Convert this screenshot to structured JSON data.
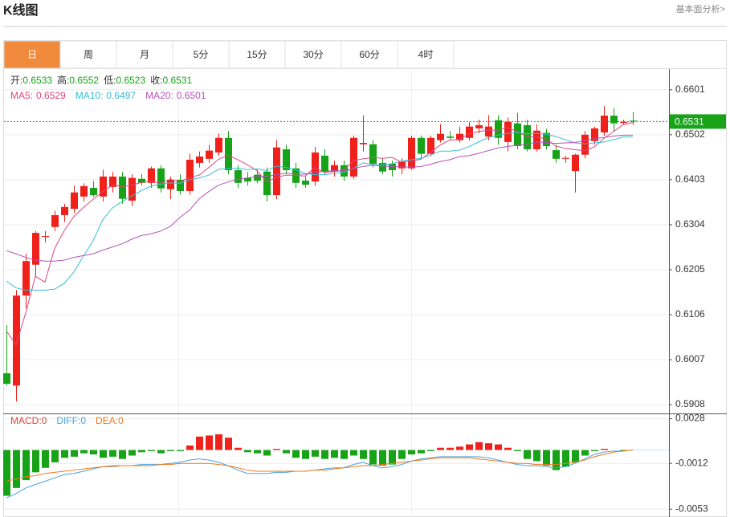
{
  "header": {
    "title": "K线图",
    "link": "基本面分析>"
  },
  "tabs": {
    "items": [
      "日",
      "周",
      "月",
      "5分",
      "15分",
      "30分",
      "60分",
      "4时"
    ],
    "active": 0
  },
  "chart_data": [
    {
      "type": "candlestick",
      "up_color": "#f0201a",
      "down_color": "#17a317",
      "info_labels": [
        "开:",
        "高:",
        "低:",
        "收:"
      ],
      "ohlc": [
        [
          0.5977,
          0.6083,
          0.595,
          0.5954
        ],
        [
          0.595,
          0.616,
          0.5915,
          0.6148
        ],
        [
          0.6148,
          0.624,
          0.612,
          0.6224
        ],
        [
          0.6216,
          0.629,
          0.619,
          0.6286
        ],
        [
          0.6277,
          0.629,
          0.6265,
          0.6279
        ],
        [
          0.6299,
          0.6335,
          0.629,
          0.6325
        ],
        [
          0.6325,
          0.635,
          0.631,
          0.6343
        ],
        [
          0.6339,
          0.639,
          0.633,
          0.6375
        ],
        [
          0.6366,
          0.6395,
          0.6355,
          0.6389
        ],
        [
          0.6385,
          0.64,
          0.6365,
          0.6369
        ],
        [
          0.6366,
          0.6425,
          0.6355,
          0.641
        ],
        [
          0.6387,
          0.642,
          0.6375,
          0.641
        ],
        [
          0.641,
          0.642,
          0.635,
          0.6361
        ],
        [
          0.6357,
          0.6415,
          0.6345,
          0.6407
        ],
        [
          0.6405,
          0.6415,
          0.639,
          0.6396
        ],
        [
          0.6396,
          0.6432,
          0.6385,
          0.6428
        ],
        [
          0.6428,
          0.6435,
          0.6375,
          0.6384
        ],
        [
          0.6382,
          0.641,
          0.636,
          0.6403
        ],
        [
          0.6403,
          0.6415,
          0.637,
          0.6378
        ],
        [
          0.6378,
          0.646,
          0.637,
          0.6447
        ],
        [
          0.644,
          0.6465,
          0.643,
          0.6454
        ],
        [
          0.6449,
          0.648,
          0.644,
          0.6467
        ],
        [
          0.6463,
          0.6505,
          0.6455,
          0.6495
        ],
        [
          0.6495,
          0.651,
          0.6415,
          0.6424
        ],
        [
          0.6424,
          0.6435,
          0.6385,
          0.6396
        ],
        [
          0.6407,
          0.642,
          0.639,
          0.6399
        ],
        [
          0.6414,
          0.6425,
          0.6395,
          0.6401
        ],
        [
          0.6421,
          0.643,
          0.6355,
          0.6369
        ],
        [
          0.6369,
          0.649,
          0.636,
          0.6474
        ],
        [
          0.647,
          0.648,
          0.6415,
          0.6424
        ],
        [
          0.6428,
          0.644,
          0.6385,
          0.6396
        ],
        [
          0.6401,
          0.641,
          0.6385,
          0.6392
        ],
        [
          0.6399,
          0.6475,
          0.639,
          0.6463
        ],
        [
          0.6456,
          0.647,
          0.6415,
          0.6421
        ],
        [
          0.6421,
          0.6445,
          0.641,
          0.6435
        ],
        [
          0.6435,
          0.6445,
          0.64,
          0.641
        ],
        [
          0.641,
          0.65,
          0.6405,
          0.6495
        ],
        [
          0.6481,
          0.6545,
          0.6465,
          0.6484
        ],
        [
          0.6481,
          0.649,
          0.643,
          0.6438
        ],
        [
          0.644,
          0.645,
          0.6415,
          0.6421
        ],
        [
          0.6438,
          0.6445,
          0.641,
          0.6424
        ],
        [
          0.6428,
          0.645,
          0.6415,
          0.6442
        ],
        [
          0.6428,
          0.65,
          0.6425,
          0.6495
        ],
        [
          0.6495,
          0.65,
          0.645,
          0.646
        ],
        [
          0.646,
          0.65,
          0.6455,
          0.6495
        ],
        [
          0.649,
          0.6525,
          0.6485,
          0.6504
        ],
        [
          0.6498,
          0.651,
          0.649,
          0.6495
        ],
        [
          0.649,
          0.652,
          0.6485,
          0.6504
        ],
        [
          0.6495,
          0.653,
          0.649,
          0.652
        ],
        [
          0.6516,
          0.6535,
          0.6505,
          0.6523
        ],
        [
          0.6498,
          0.6545,
          0.649,
          0.652
        ],
        [
          0.6534,
          0.6545,
          0.648,
          0.6495
        ],
        [
          0.6486,
          0.654,
          0.6465,
          0.653
        ],
        [
          0.6527,
          0.655,
          0.647,
          0.6477
        ],
        [
          0.6523,
          0.6535,
          0.6465,
          0.647
        ],
        [
          0.647,
          0.6525,
          0.6465,
          0.6511
        ],
        [
          0.6506,
          0.6515,
          0.647,
          0.6477
        ],
        [
          0.6468,
          0.648,
          0.644,
          0.6449
        ],
        [
          0.6449,
          0.6455,
          0.644,
          0.6451
        ],
        [
          0.6422,
          0.646,
          0.6375,
          0.6458
        ],
        [
          0.6458,
          0.651,
          0.645,
          0.6502
        ],
        [
          0.6488,
          0.652,
          0.648,
          0.6516
        ],
        [
          0.6507,
          0.6565,
          0.65,
          0.6544
        ],
        [
          0.6544,
          0.656,
          0.651,
          0.6527
        ],
        [
          0.6529,
          0.6535,
          0.6525,
          0.653
        ],
        [
          0.6533,
          0.6552,
          0.6523,
          0.6531
        ]
      ],
      "series": [
        {
          "name": "MA5:",
          "color": "#e2457c",
          "values": [
            0.607,
            0.604,
            0.611,
            0.619,
            0.6178,
            0.6252,
            0.6291,
            0.6322,
            0.6342,
            0.636,
            0.6377,
            0.6391,
            0.6388,
            0.6391,
            0.6397,
            0.64,
            0.6395,
            0.6404,
            0.6398,
            0.6408,
            0.6413,
            0.643,
            0.6448,
            0.6457,
            0.6447,
            0.6436,
            0.6423,
            0.6398,
            0.6408,
            0.6413,
            0.6413,
            0.6411,
            0.643,
            0.6419,
            0.6421,
            0.6424,
            0.6445,
            0.6449,
            0.6452,
            0.645,
            0.6452,
            0.6442,
            0.6444,
            0.6448,
            0.6463,
            0.6479,
            0.649,
            0.6492,
            0.6504,
            0.6509,
            0.6512,
            0.6512,
            0.6518,
            0.6509,
            0.6498,
            0.6497,
            0.6493,
            0.6477,
            0.6472,
            0.6469,
            0.6467,
            0.6475,
            0.6494,
            0.6509,
            0.6524,
            0.6529
          ]
        },
        {
          "name": "MA10:",
          "color": "#33bfd6",
          "values": [
            0.618,
            0.6165,
            0.616,
            0.616,
            0.616,
            0.6162,
            0.6175,
            0.62,
            0.6235,
            0.6269,
            0.6315,
            0.6341,
            0.6355,
            0.6367,
            0.6379,
            0.6389,
            0.6393,
            0.6396,
            0.6395,
            0.6403,
            0.6407,
            0.6413,
            0.6426,
            0.6428,
            0.6428,
            0.6425,
            0.6427,
            0.6423,
            0.6433,
            0.643,
            0.6425,
            0.6417,
            0.6414,
            0.6414,
            0.6417,
            0.6419,
            0.6428,
            0.644,
            0.6436,
            0.6436,
            0.6438,
            0.6444,
            0.6447,
            0.645,
            0.6457,
            0.6466,
            0.6466,
            0.6468,
            0.6476,
            0.6486,
            0.6496,
            0.6501,
            0.6505,
            0.6507,
            0.6504,
            0.6505,
            0.6503,
            0.6498,
            0.6491,
            0.6484,
            0.6482,
            0.6484,
            0.6486,
            0.6491,
            0.6497,
            0.6497
          ]
        },
        {
          "name": "MA20:",
          "color": "#b453b8",
          "values": [
            0.6247,
            0.624,
            0.6232,
            0.6226,
            0.6224,
            0.6224,
            0.6226,
            0.6232,
            0.6236,
            0.624,
            0.6248,
            0.6255,
            0.6262,
            0.6272,
            0.628,
            0.6284,
            0.629,
            0.63,
            0.632,
            0.6336,
            0.6361,
            0.6377,
            0.6391,
            0.6398,
            0.6404,
            0.6407,
            0.641,
            0.641,
            0.6414,
            0.6417,
            0.6416,
            0.6415,
            0.642,
            0.6421,
            0.6423,
            0.6422,
            0.6428,
            0.6432,
            0.6435,
            0.6433,
            0.6432,
            0.6431,
            0.6431,
            0.6432,
            0.6437,
            0.6443,
            0.6447,
            0.6454,
            0.6456,
            0.6461,
            0.6467,
            0.6473,
            0.6476,
            0.6479,
            0.6481,
            0.6486,
            0.6485,
            0.6483,
            0.6484,
            0.6485,
            0.6489,
            0.6493,
            0.6496,
            0.6499,
            0.6501,
            0.6501
          ]
        }
      ],
      "last_price": 0.6531,
      "last_color": "#19a319",
      "ylim": [
        0.5894,
        0.6643
      ],
      "yticks": [
        0.6601,
        0.6502,
        0.6403,
        0.6304,
        0.6205,
        0.6106,
        0.6007,
        0.5908
      ],
      "grid": true
    },
    {
      "type": "macd",
      "up_color": "#f0201a",
      "down_color": "#17a317",
      "bars": {
        "name": "MACD:",
        "color": "#e2453c",
        "values": [
          -0.0041,
          -0.0034,
          -0.0027,
          -0.002,
          -0.0016,
          -0.0011,
          -0.0007,
          -0.0006,
          -0.0003,
          -0.0004,
          -0.0007,
          -0.0006,
          -0.0008,
          -0.0005,
          -0.0002,
          -0.0001,
          -0.0003,
          -0.0001,
          -0.0001,
          0.0004,
          0.0012,
          0.0013,
          0.0014,
          0.0011,
          0.0002,
          -0.0002,
          -0.0003,
          -0.0005,
          0.0001,
          -0.0003,
          -0.0007,
          -0.0008,
          -0.0006,
          -0.0008,
          -0.0007,
          -0.0008,
          -0.0005,
          -0.0008,
          -0.0013,
          -0.0014,
          -0.0013,
          -0.0008,
          -0.0004,
          -0.0003,
          -0.0001,
          0.0002,
          0.0002,
          0.0003,
          0.0005,
          0.0007,
          0.0006,
          0.0005,
          0.0002,
          -0.0001,
          -0.0008,
          -0.001,
          -0.0014,
          -0.0018,
          -0.0015,
          -0.0011,
          -0.0005,
          -0.0001,
          0.0001,
          0.0,
          -0.0001,
          0.0
        ]
      },
      "series": [
        {
          "name": "DIFF:",
          "color": "#4aa3e0",
          "values": [
            -0.0043,
            -0.0039,
            -0.0034,
            -0.0031,
            -0.0028,
            -0.0025,
            -0.0022,
            -0.0021,
            -0.0019,
            -0.0017,
            -0.0015,
            -0.0014,
            -0.0014,
            -0.0014,
            -0.0013,
            -0.0013,
            -0.0013,
            -0.0012,
            -0.0011,
            -0.0009,
            -0.0008,
            -0.0009,
            -0.0011,
            -0.0014,
            -0.0018,
            -0.0021,
            -0.0021,
            -0.0021,
            -0.002,
            -0.002,
            -0.0019,
            -0.0019,
            -0.0018,
            -0.0017,
            -0.0016,
            -0.0016,
            -0.0013,
            -0.0011,
            -0.0014,
            -0.0016,
            -0.0015,
            -0.0013,
            -0.001,
            -0.0008,
            -0.0007,
            -0.0006,
            -0.0006,
            -0.0006,
            -0.0006,
            -0.0006,
            -0.0007,
            -0.0009,
            -0.0011,
            -0.0013,
            -0.0014,
            -0.0014,
            -0.0015,
            -0.0016,
            -0.0015,
            -0.0012,
            -0.0008,
            -0.0004,
            -0.0002,
            -0.0001,
            -0.0001,
            0.0
          ]
        },
        {
          "name": "DEA:",
          "color": "#f07a1a",
          "values": [
            -0.0028,
            -0.0026,
            -0.0024,
            -0.0023,
            -0.0021,
            -0.002,
            -0.0019,
            -0.0018,
            -0.0017,
            -0.0016,
            -0.0015,
            -0.0015,
            -0.0014,
            -0.0014,
            -0.0014,
            -0.0014,
            -0.0013,
            -0.0013,
            -0.0012,
            -0.0012,
            -0.0012,
            -0.0012,
            -0.0013,
            -0.0014,
            -0.0016,
            -0.0018,
            -0.0019,
            -0.0019,
            -0.0019,
            -0.0019,
            -0.0019,
            -0.0019,
            -0.0018,
            -0.0018,
            -0.0017,
            -0.0016,
            -0.0015,
            -0.0014,
            -0.0014,
            -0.0013,
            -0.0012,
            -0.0011,
            -0.001,
            -0.0009,
            -0.0008,
            -0.0007,
            -0.0007,
            -0.0007,
            -0.0007,
            -0.0008,
            -0.0009,
            -0.001,
            -0.0011,
            -0.0012,
            -0.0012,
            -0.0013,
            -0.0013,
            -0.0013,
            -0.0012,
            -0.0011,
            -0.0009,
            -0.0006,
            -0.0004,
            -0.0002,
            -0.0001,
            0.0
          ]
        }
      ],
      "ylim": [
        -0.006,
        0.0032
      ],
      "yticks": [
        0.0028,
        -0.0012,
        -0.0053
      ],
      "grid": true
    }
  ]
}
